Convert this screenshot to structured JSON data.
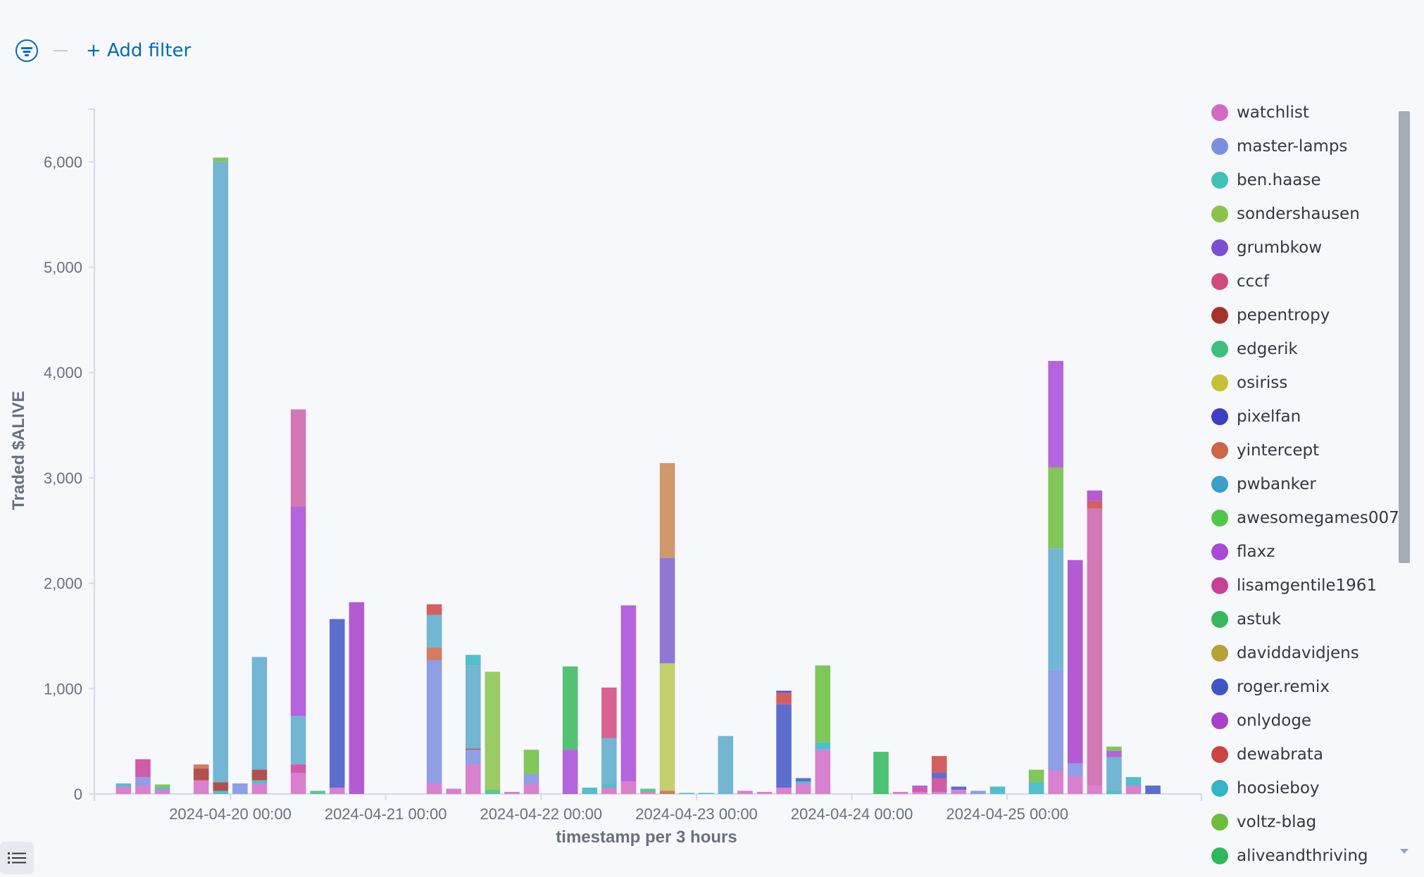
{
  "filter": {
    "add_filter_label": "+ Add filter",
    "icon": "filter-icon"
  },
  "toggle_icon": "list-icon",
  "chart_data": {
    "type": "bar",
    "stacked": true,
    "title": "",
    "xlabel": "timestamp per 3 hours",
    "ylabel": "Traded $ALIVE",
    "ylim": [
      0,
      6500
    ],
    "yticks": [
      0,
      1000,
      2000,
      3000,
      4000,
      5000,
      6000
    ],
    "ytick_labels": [
      "0",
      "1,000",
      "2,000",
      "3,000",
      "4,000",
      "5,000",
      "6,000"
    ],
    "xticks": [
      "2024-04-20 00:00",
      "2024-04-21 00:00",
      "2024-04-22 00:00",
      "2024-04-23 00:00",
      "2024-04-24 00:00",
      "2024-04-25 00:00"
    ],
    "xlim": [
      "2024-04-19 03:00",
      "2024-04-26 06:00"
    ],
    "bar_width_hours": 3,
    "grid": false,
    "legend_position": "right",
    "legend": [
      "watchlist",
      "master-lamps",
      "ben.haase",
      "sondershausen",
      "grumbkow",
      "cccf",
      "pepentropy",
      "edgerik",
      "osiriss",
      "pixelfan",
      "yintercept",
      "pwbanker",
      "awesomegames007",
      "flaxz",
      "lisamgentile1961",
      "astuk",
      "daviddavidjens",
      "roger.remix",
      "onlydoge",
      "dewabrata",
      "hoosieboy",
      "voltz-blag",
      "aliveandthriving"
    ],
    "colors": {
      "watchlist": "#d36bc6",
      "master-lamps": "#7b8fe0",
      "ben.haase": "#40c0b8",
      "sondershausen": "#8bc34a",
      "grumbkow": "#7b4fd1",
      "cccf": "#d2497e",
      "pepentropy": "#a6322c",
      "edgerik": "#3fbf7f",
      "osiriss": "#c2c234",
      "pixelfan": "#3b3fc4",
      "yintercept": "#cc6644",
      "pwbanker": "#3ba0c8",
      "awesomegames007": "#54c646",
      "flaxz": "#a84ad6",
      "lisamgentile1961": "#c93f98",
      "astuk": "#36b85c",
      "daviddavidjens": "#b8a038",
      "roger.remix": "#3f56c4",
      "onlydoge": "#a840cc",
      "dewabrata": "#cc4444",
      "hoosieboy": "#35b4c4",
      "voltz-blag": "#6cbd3c",
      "aliveandthriving": "#2eb85a",
      "lightblue": "#5aaacc",
      "tan": "#c88850",
      "olive": "#b8c850",
      "violet": "#7b62cc",
      "mauve": "#cc60a8"
    },
    "bars": [
      {
        "x": "2024-04-19 06:00",
        "segments": [
          [
            "watchlist",
            70
          ],
          [
            "hoosieboy",
            30
          ]
        ]
      },
      {
        "x": "2024-04-19 09:00",
        "segments": [
          [
            "watchlist",
            80
          ],
          [
            "master-lamps",
            80
          ],
          [
            "lisamgentile1961",
            170
          ]
        ]
      },
      {
        "x": "2024-04-19 12:00",
        "segments": [
          [
            "watchlist",
            40
          ],
          [
            "hoosieboy",
            20
          ],
          [
            "voltz-blag",
            30
          ]
        ]
      },
      {
        "x": "2024-04-19 18:00",
        "segments": [
          [
            "watchlist",
            130
          ],
          [
            "pepentropy",
            110
          ],
          [
            "yintercept",
            40
          ]
        ]
      },
      {
        "x": "2024-04-19 21:00",
        "segments": [
          [
            "hoosieboy",
            30
          ],
          [
            "pepentropy",
            80
          ],
          [
            "lightblue",
            5890
          ],
          [
            "voltz-blag",
            40
          ]
        ]
      },
      {
        "x": "2024-04-20 00:00",
        "segments": [
          [
            "master-lamps",
            100
          ]
        ]
      },
      {
        "x": "2024-04-20 03:00",
        "segments": [
          [
            "watchlist",
            100
          ],
          [
            "hoosieboy",
            30
          ],
          [
            "pepentropy",
            100
          ],
          [
            "lightblue",
            1070
          ]
        ]
      },
      {
        "x": "2024-04-20 09:00",
        "segments": [
          [
            "watchlist",
            200
          ],
          [
            "lisamgentile1961",
            80
          ],
          [
            "lightblue",
            460
          ],
          [
            "flaxz",
            1990
          ],
          [
            "mauve",
            920
          ]
        ]
      },
      {
        "x": "2024-04-20 12:00",
        "segments": [
          [
            "edgerik",
            30
          ]
        ]
      },
      {
        "x": "2024-04-20 15:00",
        "segments": [
          [
            "watchlist",
            60
          ],
          [
            "roger.remix",
            1600
          ]
        ]
      },
      {
        "x": "2024-04-20 18:00",
        "segments": [
          [
            "onlydoge",
            1820
          ]
        ]
      },
      {
        "x": "2024-04-21 06:00",
        "segments": [
          [
            "watchlist",
            100
          ],
          [
            "master-lamps",
            1170
          ],
          [
            "yintercept",
            120
          ],
          [
            "lightblue",
            310
          ],
          [
            "dewabrata",
            100
          ]
        ]
      },
      {
        "x": "2024-04-21 09:00",
        "segments": [
          [
            "watchlist",
            50
          ]
        ]
      },
      {
        "x": "2024-04-21 12:00",
        "segments": [
          [
            "watchlist",
            280
          ],
          [
            "master-lamps",
            140
          ],
          [
            "pepentropy",
            10
          ],
          [
            "lightblue",
            790
          ],
          [
            "hoosieboy",
            100
          ]
        ]
      },
      {
        "x": "2024-04-21 15:00",
        "segments": [
          [
            "edgerik",
            40
          ],
          [
            "sondershausen",
            1120
          ]
        ]
      },
      {
        "x": "2024-04-21 18:00",
        "segments": [
          [
            "watchlist",
            20
          ]
        ]
      },
      {
        "x": "2024-04-21 21:00",
        "segments": [
          [
            "watchlist",
            100
          ],
          [
            "master-lamps",
            90
          ],
          [
            "voltz-blag",
            230
          ]
        ]
      },
      {
        "x": "2024-04-22 03:00",
        "segments": [
          [
            "flaxz",
            420
          ],
          [
            "astuk",
            790
          ]
        ]
      },
      {
        "x": "2024-04-22 06:00",
        "segments": [
          [
            "hoosieboy",
            60
          ]
        ]
      },
      {
        "x": "2024-04-22 09:00",
        "segments": [
          [
            "watchlist",
            60
          ],
          [
            "hoosieboy",
            40
          ],
          [
            "lightblue",
            430
          ],
          [
            "cccf",
            480
          ]
        ]
      },
      {
        "x": "2024-04-22 12:00",
        "segments": [
          [
            "watchlist",
            120
          ],
          [
            "flaxz",
            1670
          ]
        ]
      },
      {
        "x": "2024-04-22 15:00",
        "segments": [
          [
            "watchlist",
            20
          ],
          [
            "edgerik",
            30
          ]
        ]
      },
      {
        "x": "2024-04-22 18:00",
        "segments": [
          [
            "yintercept",
            30
          ],
          [
            "olive",
            1210
          ],
          [
            "violet",
            1000
          ],
          [
            "tan",
            900
          ]
        ]
      },
      {
        "x": "2024-04-22 21:00",
        "segments": [
          [
            "hoosieboy",
            10
          ]
        ]
      },
      {
        "x": "2024-04-23 00:00",
        "segments": [
          [
            "hoosieboy",
            10
          ]
        ]
      },
      {
        "x": "2024-04-23 03:00",
        "segments": [
          [
            "lightblue",
            550
          ]
        ]
      },
      {
        "x": "2024-04-23 06:00",
        "segments": [
          [
            "watchlist",
            30
          ]
        ]
      },
      {
        "x": "2024-04-23 09:00",
        "segments": [
          [
            "watchlist",
            20
          ]
        ]
      },
      {
        "x": "2024-04-23 12:00",
        "segments": [
          [
            "watchlist",
            60
          ],
          [
            "roger.remix",
            790
          ],
          [
            "dewabrata",
            110
          ],
          [
            "pixelfan",
            20
          ]
        ]
      },
      {
        "x": "2024-04-23 15:00",
        "segments": [
          [
            "watchlist",
            100
          ],
          [
            "hoosieboy",
            20
          ],
          [
            "roger.remix",
            30
          ]
        ]
      },
      {
        "x": "2024-04-23 18:00",
        "segments": [
          [
            "watchlist",
            420
          ],
          [
            "hoosieboy",
            70
          ],
          [
            "voltz-blag",
            730
          ]
        ]
      },
      {
        "x": "2024-04-24 03:00",
        "segments": [
          [
            "aliveandthriving",
            400
          ]
        ]
      },
      {
        "x": "2024-04-24 06:00",
        "segments": [
          [
            "watchlist",
            20
          ]
        ]
      },
      {
        "x": "2024-04-24 09:00",
        "segments": [
          [
            "watchlist",
            20
          ],
          [
            "lisamgentile1961",
            40
          ],
          [
            "flaxz",
            20
          ]
        ]
      },
      {
        "x": "2024-04-24 12:00",
        "segments": [
          [
            "watchlist",
            20
          ],
          [
            "lisamgentile1961",
            130
          ],
          [
            "roger.remix",
            50
          ],
          [
            "dewabrata",
            160
          ]
        ]
      },
      {
        "x": "2024-04-24 15:00",
        "segments": [
          [
            "watchlist",
            40
          ],
          [
            "roger.remix",
            30
          ]
        ]
      },
      {
        "x": "2024-04-24 18:00",
        "segments": [
          [
            "master-lamps",
            30
          ]
        ]
      },
      {
        "x": "2024-04-24 21:00",
        "segments": [
          [
            "hoosieboy",
            70
          ]
        ]
      },
      {
        "x": "2024-04-25 03:00",
        "segments": [
          [
            "hoosieboy",
            110
          ],
          [
            "voltz-blag",
            120
          ]
        ]
      },
      {
        "x": "2024-04-25 06:00",
        "segments": [
          [
            "watchlist",
            220
          ],
          [
            "master-lamps",
            960
          ],
          [
            "lightblue",
            1150
          ],
          [
            "voltz-blag",
            770
          ],
          [
            "flaxz",
            1010
          ]
        ]
      },
      {
        "x": "2024-04-25 09:00",
        "segments": [
          [
            "watchlist",
            170
          ],
          [
            "master-lamps",
            120
          ],
          [
            "onlydoge",
            1930
          ]
        ]
      },
      {
        "x": "2024-04-25 12:00",
        "segments": [
          [
            "watchlist",
            80
          ],
          [
            "mauve",
            2630
          ],
          [
            "dewabrata",
            70
          ],
          [
            "onlydoge",
            100
          ]
        ]
      },
      {
        "x": "2024-04-25 15:00",
        "segments": [
          [
            "hoosieboy",
            30
          ],
          [
            "lightblue",
            320
          ],
          [
            "flaxz",
            60
          ],
          [
            "voltz-blag",
            40
          ]
        ]
      },
      {
        "x": "2024-04-25 18:00",
        "segments": [
          [
            "watchlist",
            80
          ],
          [
            "hoosieboy",
            80
          ]
        ]
      },
      {
        "x": "2024-04-25 21:00",
        "segments": [
          [
            "roger.remix",
            80
          ]
        ]
      }
    ]
  }
}
